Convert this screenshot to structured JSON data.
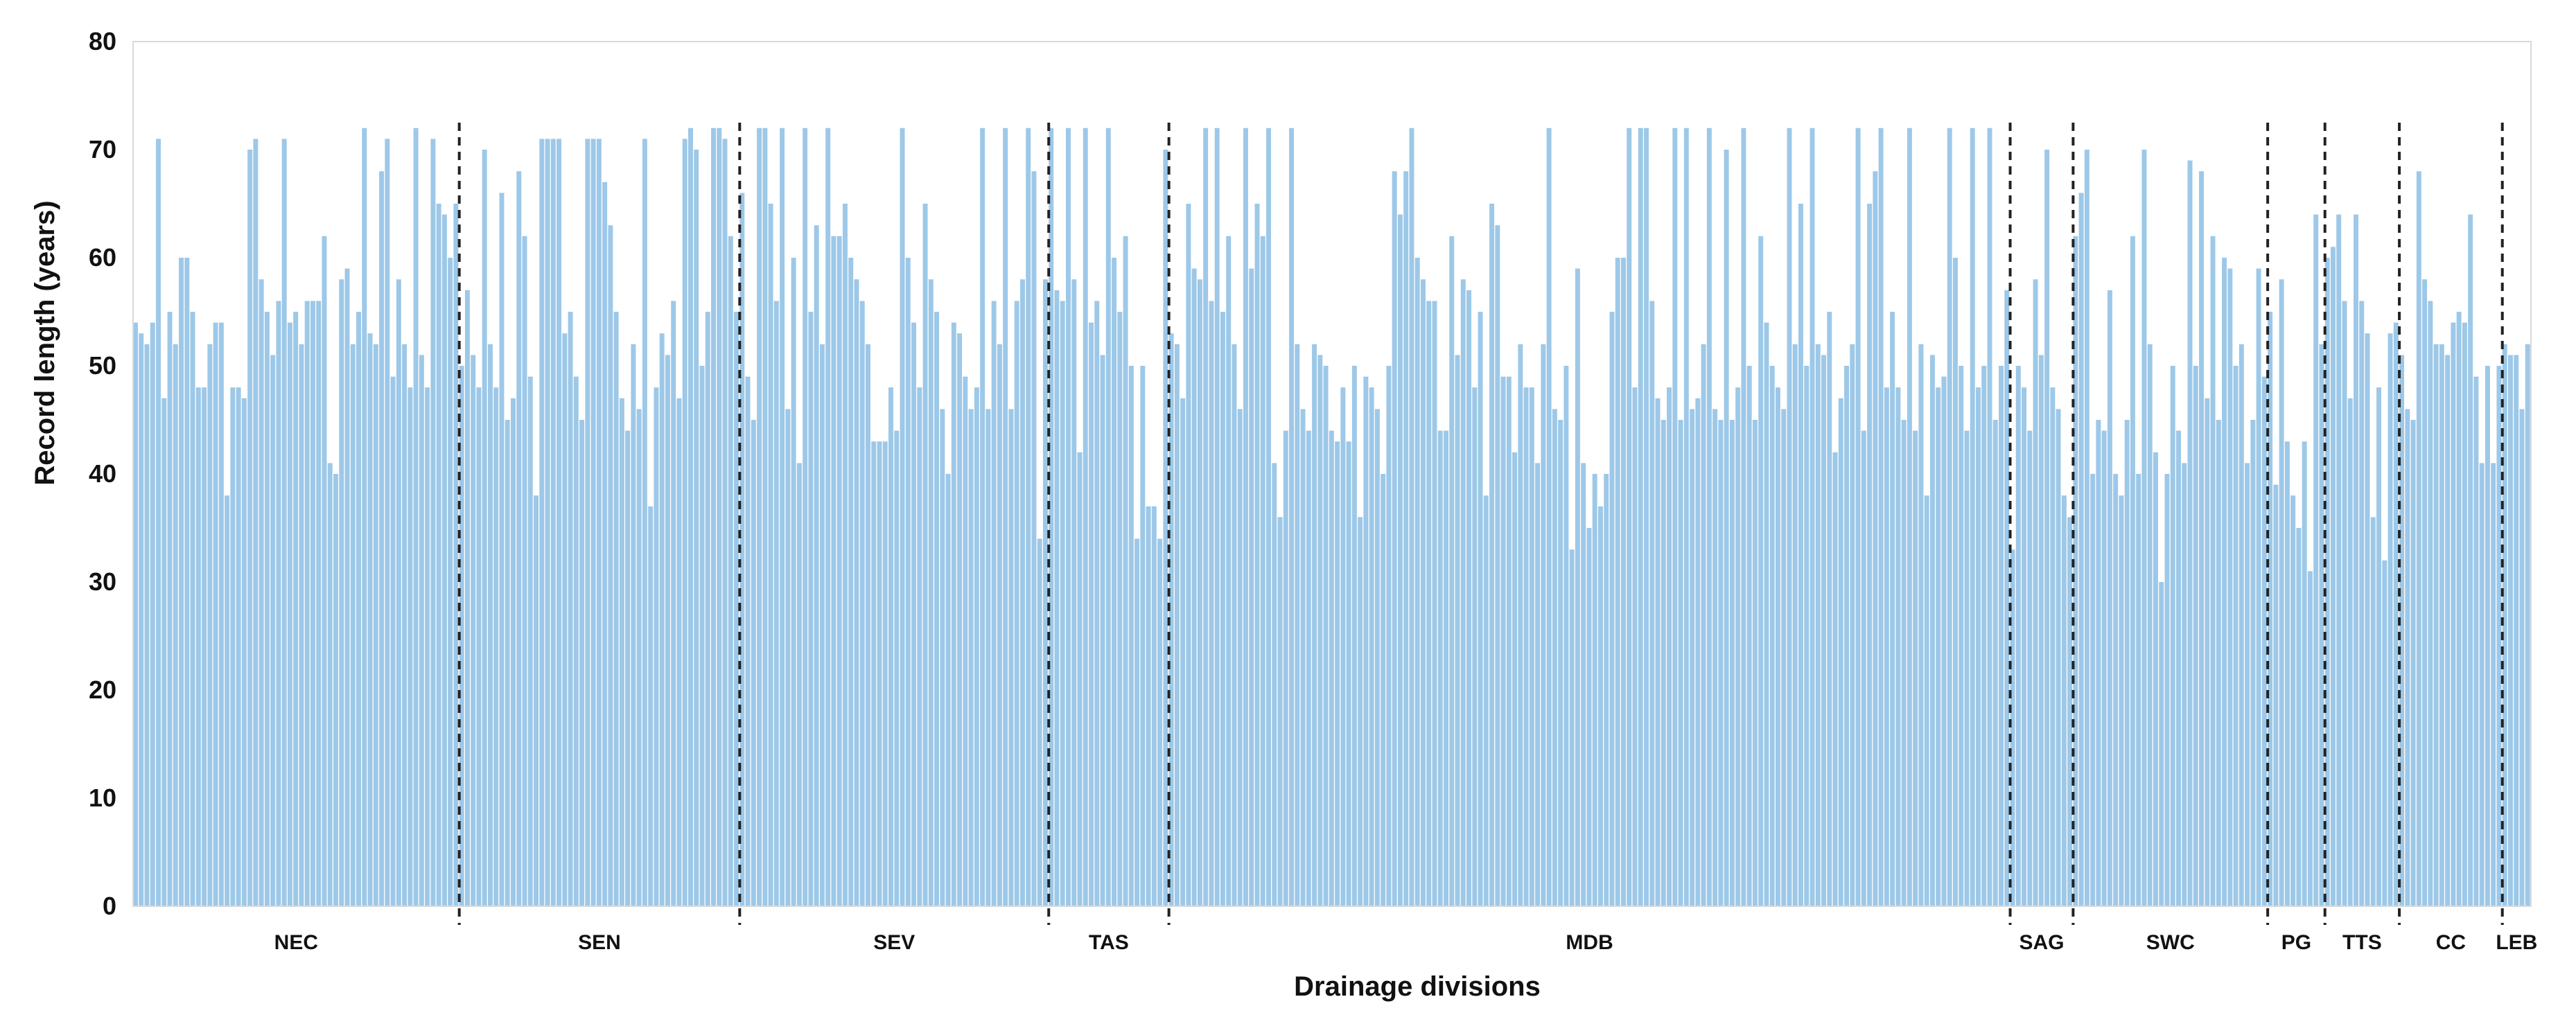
{
  "chart_data": {
    "type": "bar",
    "xlabel": "Drainage divisions",
    "ylabel": "Record length (years)",
    "ylim": [
      0,
      80
    ],
    "yticks": [
      0,
      10,
      20,
      30,
      40,
      50,
      60,
      70,
      80
    ],
    "grid": false,
    "legend": "none",
    "bar_color": "#9dc8e8",
    "divider_color": "#222222",
    "divisions": [
      {
        "name": "NEC",
        "values": [
          54,
          53,
          52,
          54,
          71,
          47,
          55,
          52,
          60,
          60,
          55,
          48,
          48,
          52,
          54,
          54,
          38,
          48,
          48,
          47,
          70,
          71,
          58,
          55,
          51,
          56,
          71,
          54,
          55,
          52,
          56,
          56,
          56,
          62,
          41,
          40,
          58,
          59,
          52,
          55,
          72,
          53,
          52,
          68,
          71,
          49,
          58,
          52,
          48,
          72,
          51,
          48,
          71,
          65,
          64,
          60,
          65
        ]
      },
      {
        "name": "SEN",
        "values": [
          50,
          57,
          51,
          48,
          70,
          52,
          48,
          66,
          45,
          47,
          68,
          62,
          49,
          38,
          71,
          71,
          71,
          71,
          53,
          55,
          49,
          45,
          71,
          71,
          71,
          67,
          63,
          55,
          47,
          44,
          52,
          46,
          71,
          37,
          48,
          53,
          51,
          56,
          47,
          71,
          72,
          70,
          50,
          55,
          72,
          72,
          71,
          62,
          55
        ]
      },
      {
        "name": "SEV",
        "values": [
          66,
          49,
          45,
          72,
          72,
          65,
          56,
          72,
          46,
          60,
          41,
          72,
          55,
          63,
          52,
          72,
          62,
          62,
          65,
          60,
          58,
          56,
          52,
          43,
          43,
          43,
          48,
          44,
          72,
          60,
          54,
          48,
          65,
          58,
          55,
          46,
          40,
          54,
          53,
          49,
          46,
          48,
          72,
          46,
          56,
          52,
          72,
          46,
          56,
          58,
          72,
          68,
          34,
          58
        ]
      },
      {
        "name": "TAS",
        "values": [
          72,
          57,
          56,
          72,
          58,
          42,
          72,
          54,
          56,
          51,
          72,
          60,
          55,
          62,
          50,
          34,
          50,
          37,
          37,
          34,
          70
        ]
      },
      {
        "name": "MDB",
        "values": [
          53,
          52,
          47,
          65,
          59,
          58,
          72,
          56,
          72,
          55,
          62,
          52,
          46,
          72,
          59,
          65,
          62,
          72,
          41,
          36,
          44,
          72,
          52,
          46,
          44,
          52,
          51,
          50,
          44,
          43,
          48,
          43,
          50,
          36,
          49,
          48,
          46,
          40,
          50,
          68,
          64,
          68,
          72,
          60,
          58,
          56,
          56,
          44,
          44,
          62,
          51,
          58,
          57,
          48,
          55,
          38,
          65,
          63,
          49,
          49,
          42,
          52,
          48,
          48,
          41,
          52,
          72,
          46,
          45,
          50,
          33,
          59,
          41,
          35,
          40,
          37,
          40,
          55,
          60,
          60,
          72,
          48,
          72,
          72,
          56,
          47,
          45,
          48,
          72,
          45,
          72,
          46,
          47,
          52,
          72,
          46,
          45,
          70,
          45,
          48,
          72,
          50,
          45,
          62,
          54,
          50,
          48,
          46,
          72,
          52,
          65,
          50,
          72,
          52,
          51,
          55,
          42,
          47,
          50,
          52,
          72,
          44,
          65,
          68,
          72,
          48,
          55,
          48,
          45,
          72,
          44,
          52,
          38,
          51,
          48,
          49,
          72,
          60,
          50,
          44,
          72,
          48,
          50,
          72,
          45,
          50,
          57
        ]
      },
      {
        "name": "SAG",
        "values": [
          33,
          50,
          48,
          44,
          58,
          51,
          70,
          48,
          46,
          38,
          36
        ]
      },
      {
        "name": "SWC",
        "values": [
          62,
          66,
          70,
          40,
          45,
          44,
          57,
          40,
          38,
          45,
          62,
          40,
          70,
          52,
          42,
          30,
          40,
          50,
          44,
          41,
          69,
          50,
          68,
          47,
          62,
          45,
          60,
          59,
          50,
          52,
          41,
          45,
          59,
          49
        ]
      },
      {
        "name": "PG",
        "values": [
          55,
          39,
          58,
          43,
          38,
          35,
          43,
          31,
          64,
          52
        ]
      },
      {
        "name": "TTS",
        "values": [
          60,
          61,
          64,
          56,
          47,
          64,
          56,
          53,
          36,
          48,
          32,
          53,
          54
        ]
      },
      {
        "name": "CC",
        "values": [
          51,
          46,
          45,
          68,
          58,
          56,
          52,
          52,
          51,
          54,
          55,
          54,
          64,
          49,
          41,
          50,
          41,
          50
        ]
      },
      {
        "name": "LEB",
        "values": [
          52,
          51,
          51,
          46,
          52
        ]
      }
    ]
  }
}
